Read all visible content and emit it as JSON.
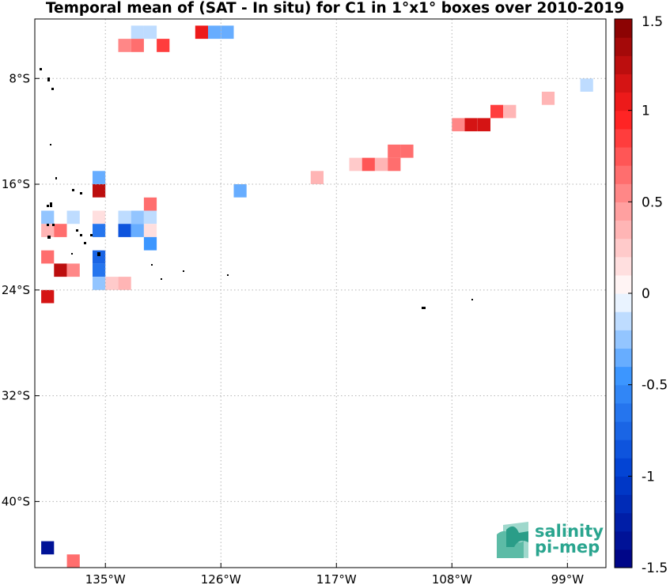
{
  "title": "Temporal mean of (SAT - In situ) for C1 in 1°x1° boxes over 2010-2019",
  "map": {
    "lon_range": [
      -140.5,
      -96.0
    ],
    "lat_range": [
      -45.0,
      -3.5
    ],
    "x_ticks": [
      {
        "lon": -135,
        "label": "135°W"
      },
      {
        "lon": -126,
        "label": "126°W"
      },
      {
        "lon": -117,
        "label": "117°W"
      },
      {
        "lon": -108,
        "label": "108°W"
      },
      {
        "lon": -99,
        "label": "99°W"
      }
    ],
    "y_ticks": [
      {
        "lat": -8,
        "label": "8°S"
      },
      {
        "lat": -16,
        "label": "16°S"
      },
      {
        "lat": -24,
        "label": "24°S"
      },
      {
        "lat": -32,
        "label": "32°S"
      },
      {
        "lat": -40,
        "label": "40°S"
      }
    ],
    "grid": true,
    "land_color": "#000000"
  },
  "colorbar": {
    "min": -1.5,
    "max": 1.5,
    "ticks": [
      "1.5",
      "1",
      "0.5",
      "0",
      "-0.5",
      "-1",
      "-1.5"
    ],
    "tick_values": [
      1.5,
      1,
      0.5,
      0,
      -0.5,
      -1,
      -1.5
    ],
    "colormap": "blue-white-red (diverging)"
  },
  "chart_data": {
    "type": "heatmap",
    "title": "Temporal mean of (SAT - In situ) for C1 in 1°x1° boxes over 2010-2019",
    "xlabel": "",
    "ylabel": "",
    "xlim": [
      -140.5,
      -96.0
    ],
    "ylim": [
      -45.0,
      -3.5
    ],
    "grid": true,
    "cells_lon_lat_value": [
      [
        -132.5,
        -4.5,
        -0.2
      ],
      [
        -131.5,
        -4.5,
        -0.2
      ],
      [
        -127.5,
        -4.5,
        1.0
      ],
      [
        -126.5,
        -4.5,
        -0.3
      ],
      [
        -125.5,
        -4.5,
        -0.3
      ],
      [
        -133.5,
        -5.5,
        0.5
      ],
      [
        -132.5,
        -5.5,
        0.6
      ],
      [
        -130.5,
        -5.5,
        0.8
      ],
      [
        -97.5,
        -8.5,
        -0.2
      ],
      [
        -100.5,
        -9.5,
        0.3
      ],
      [
        -104.5,
        -10.5,
        0.8
      ],
      [
        -103.5,
        -10.5,
        0.3
      ],
      [
        -107.5,
        -11.5,
        0.5
      ],
      [
        -106.5,
        -11.5,
        1.1
      ],
      [
        -105.5,
        -11.5,
        1.1
      ],
      [
        -112.5,
        -13.5,
        0.6
      ],
      [
        -111.5,
        -13.5,
        0.6
      ],
      [
        -115.5,
        -14.5,
        0.2
      ],
      [
        -114.5,
        -14.5,
        0.7
      ],
      [
        -113.5,
        -14.5,
        0.3
      ],
      [
        -112.5,
        -14.5,
        0.6
      ],
      [
        -135.5,
        -15.5,
        -0.3
      ],
      [
        -118.5,
        -15.5,
        0.3
      ],
      [
        -135.5,
        -16.5,
        1.3
      ],
      [
        -124.5,
        -16.5,
        -0.4
      ],
      [
        -131.5,
        -17.5,
        0.6
      ],
      [
        -139.5,
        -18.5,
        -0.25
      ],
      [
        -137.5,
        -18.5,
        -0.15
      ],
      [
        -135.5,
        -18.5,
        0.15
      ],
      [
        -133.5,
        -18.5,
        -0.15
      ],
      [
        -132.5,
        -18.5,
        -0.25
      ],
      [
        -131.5,
        -18.5,
        -0.1
      ],
      [
        -139.5,
        -19.5,
        0.3
      ],
      [
        -138.5,
        -19.5,
        0.6
      ],
      [
        -135.5,
        -19.5,
        -0.7
      ],
      [
        -133.5,
        -19.5,
        -0.8
      ],
      [
        -132.5,
        -19.5,
        -0.35
      ],
      [
        -131.5,
        -19.5,
        0.1
      ],
      [
        -131.5,
        -20.5,
        -0.5
      ],
      [
        -139.5,
        -21.5,
        0.6
      ],
      [
        -135.5,
        -21.5,
        -0.75
      ],
      [
        -138.5,
        -22.5,
        1.3
      ],
      [
        -137.5,
        -22.5,
        0.5
      ],
      [
        -135.5,
        -22.5,
        -0.7
      ],
      [
        -135.5,
        -23.5,
        -0.25
      ],
      [
        -134.5,
        -23.5,
        0.25
      ],
      [
        -133.5,
        -23.5,
        0.3
      ],
      [
        -139.5,
        -24.5,
        1.1
      ],
      [
        -139.5,
        -43.5,
        -1.3
      ],
      [
        -137.5,
        -44.5,
        0.6
      ]
    ]
  },
  "logo": {
    "line1": "salinity",
    "line2": "pi-mep"
  }
}
